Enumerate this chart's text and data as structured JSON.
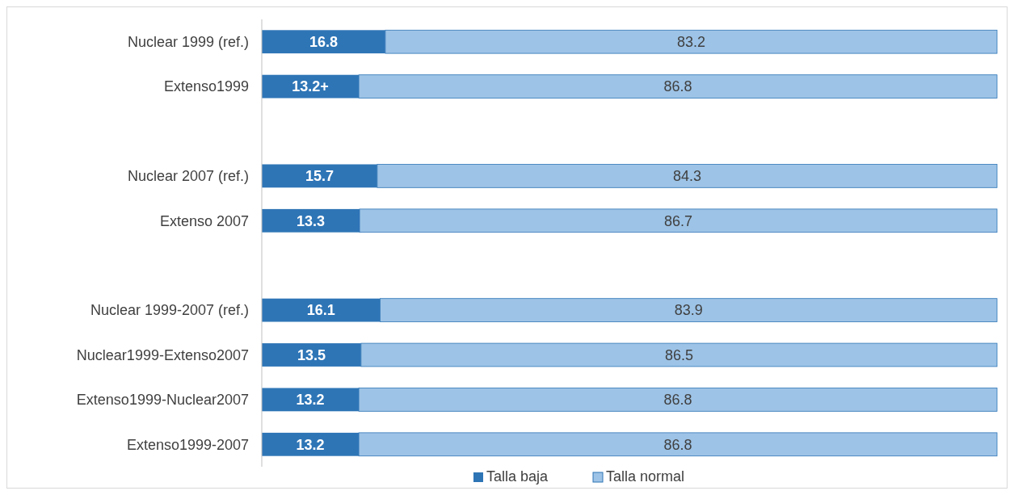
{
  "chart_data": {
    "type": "bar",
    "orientation": "horizontal",
    "stacked": true,
    "legend": "bottom",
    "categories": [
      "Nuclear 1999 (ref.)",
      "Extenso1999",
      null,
      "Nuclear 2007 (ref.)",
      "Extenso 2007",
      null,
      "Nuclear 1999-2007  (ref.)",
      "Nuclear1999-Extenso2007",
      "Extenso1999-Nuclear2007",
      "Extenso1999-2007"
    ],
    "series": [
      {
        "name": "Talla baja",
        "color": "#2e75b6",
        "values": [
          16.8,
          13.2,
          null,
          15.7,
          13.3,
          null,
          16.1,
          13.5,
          13.2,
          13.2
        ],
        "value_labels": [
          "16.8",
          "13.2+",
          null,
          "15.7",
          "13.3",
          null,
          "16.1",
          "13.5",
          "13.2",
          "13.2"
        ]
      },
      {
        "name": "Talla normal",
        "color": "#9dc3e6",
        "values": [
          83.2,
          86.8,
          null,
          84.3,
          86.7,
          null,
          83.9,
          86.5,
          86.8,
          86.8
        ],
        "value_labels": [
          "83.2",
          "86.8",
          null,
          "84.3",
          "86.7",
          null,
          "83.9",
          "86.5",
          "86.8",
          "86.8"
        ]
      }
    ]
  }
}
